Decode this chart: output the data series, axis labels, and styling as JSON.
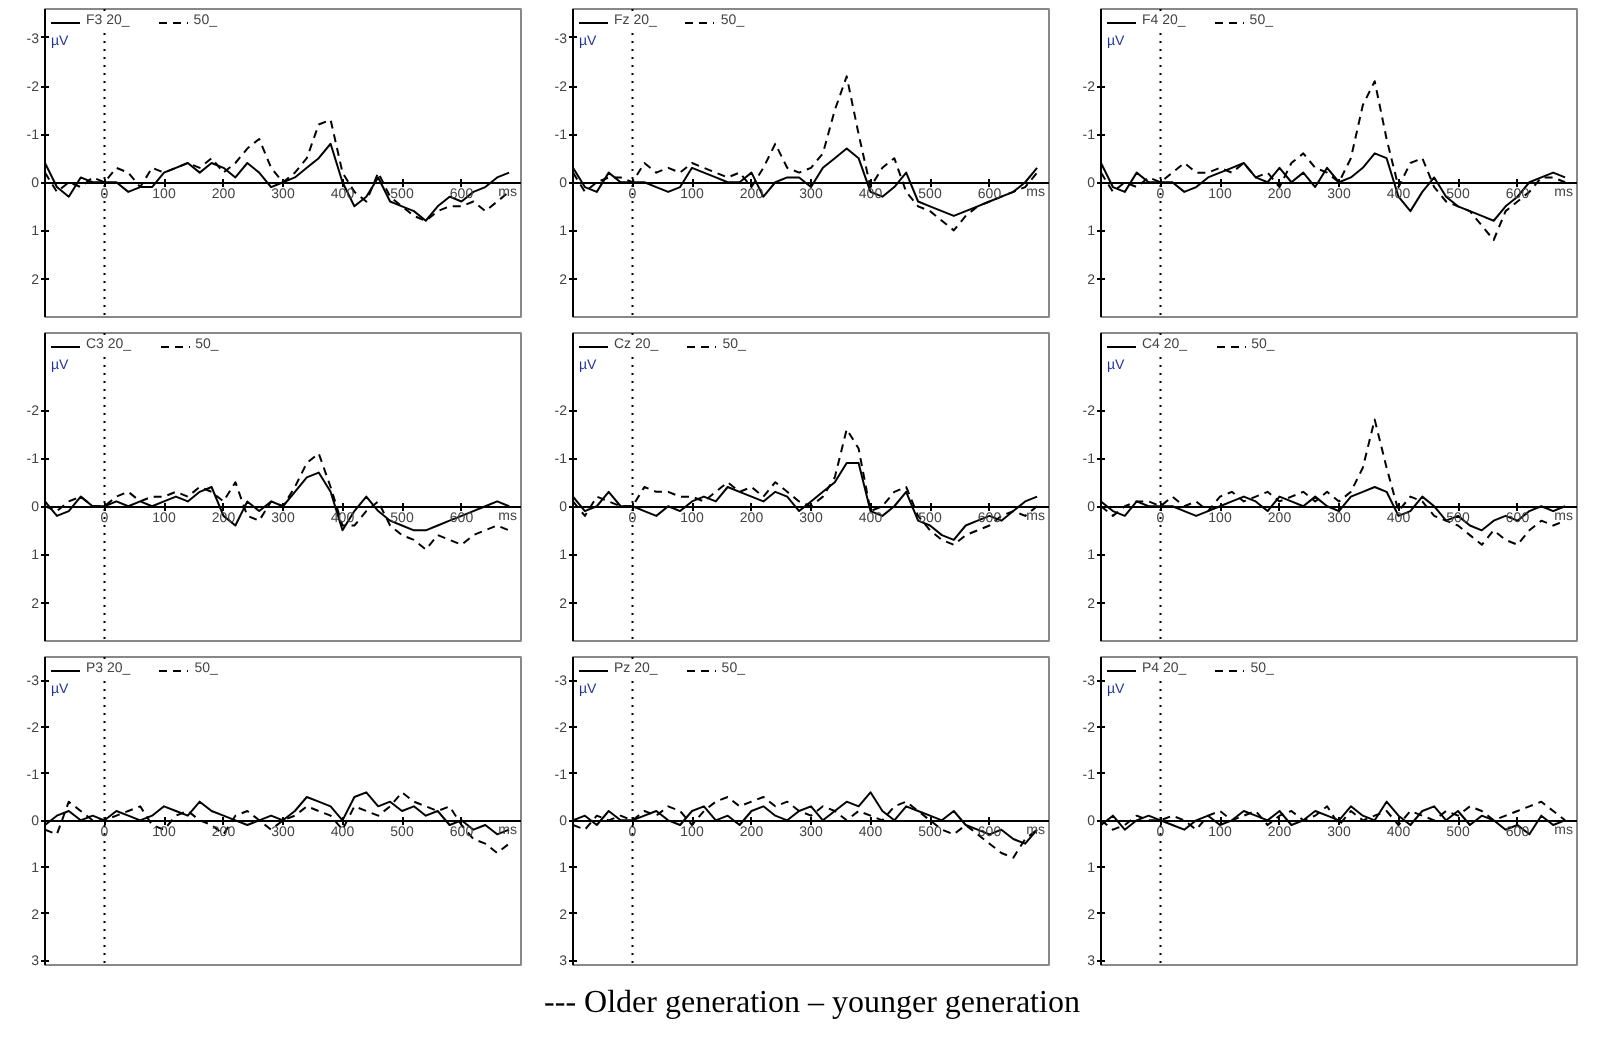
{
  "chart_data": [
    {
      "type": "line",
      "xlabel": "ms",
      "ylabel": "µV",
      "xlim": [
        -100,
        700
      ],
      "ylim": [
        2.8,
        -3.6
      ],
      "xticks": [
        0,
        100,
        200,
        300,
        400,
        500,
        600
      ],
      "yticks": [
        -3,
        -2,
        -1,
        0,
        1,
        2
      ],
      "legend": "top left",
      "ref_lines": [
        {
          "axis": "x",
          "value": 0,
          "line_style": "dotted"
        }
      ],
      "x": [
        -100,
        -80,
        -60,
        -40,
        -20,
        0,
        20,
        40,
        60,
        80,
        100,
        120,
        140,
        160,
        180,
        200,
        220,
        240,
        260,
        280,
        300,
        320,
        340,
        360,
        380,
        400,
        420,
        440,
        460,
        480,
        500,
        520,
        540,
        560,
        580,
        600,
        620,
        640,
        660,
        680
      ],
      "series": [
        {
          "name": "F3 20_",
          "color": "#000000",
          "line_style": "solid",
          "values": [
            -0.4,
            0.1,
            0.3,
            -0.1,
            0.0,
            0.0,
            0.0,
            0.2,
            0.1,
            0.1,
            -0.2,
            -0.3,
            -0.4,
            -0.2,
            -0.4,
            -0.3,
            -0.1,
            -0.4,
            -0.2,
            0.1,
            0.0,
            -0.1,
            -0.3,
            -0.5,
            -0.8,
            0.0,
            0.5,
            0.3,
            -0.1,
            0.4,
            0.5,
            0.6,
            0.8,
            0.5,
            0.3,
            0.4,
            0.2,
            0.1,
            -0.1,
            -0.2
          ]
        },
        {
          "name": "50_",
          "color": "#000000",
          "line_style": "dashed",
          "values": [
            -0.2,
            0.2,
            0.0,
            0.1,
            -0.1,
            0.0,
            -0.3,
            -0.2,
            0.1,
            -0.3,
            -0.2,
            -0.3,
            -0.4,
            -0.3,
            -0.5,
            -0.2,
            -0.4,
            -0.7,
            -0.9,
            -0.3,
            0.0,
            -0.2,
            -0.5,
            -1.2,
            -1.3,
            -0.2,
            0.2,
            0.4,
            -0.2,
            0.3,
            0.5,
            0.7,
            0.8,
            0.6,
            0.5,
            0.5,
            0.4,
            0.6,
            0.4,
            0.2
          ]
        }
      ]
    },
    {
      "type": "line",
      "xlabel": "ms",
      "ylabel": "µV",
      "xlim": [
        -100,
        700
      ],
      "ylim": [
        2.8,
        -3.6
      ],
      "xticks": [
        0,
        100,
        200,
        300,
        400,
        500,
        600
      ],
      "yticks": [
        -3,
        -2,
        -1,
        0,
        1,
        2
      ],
      "legend": "top left",
      "ref_lines": [
        {
          "axis": "x",
          "value": 0,
          "line_style": "dotted"
        }
      ],
      "x": [
        -100,
        -80,
        -60,
        -40,
        -20,
        0,
        20,
        40,
        60,
        80,
        100,
        120,
        140,
        160,
        180,
        200,
        220,
        240,
        260,
        280,
        300,
        320,
        340,
        360,
        380,
        400,
        420,
        440,
        460,
        480,
        500,
        520,
        540,
        560,
        580,
        600,
        620,
        640,
        660,
        680
      ],
      "series": [
        {
          "name": "Fz 20_",
          "color": "#000000",
          "line_style": "solid",
          "values": [
            -0.3,
            0.1,
            0.2,
            -0.2,
            0.0,
            0.0,
            0.0,
            0.1,
            0.2,
            0.1,
            -0.3,
            -0.2,
            -0.1,
            0.0,
            0.0,
            -0.2,
            0.3,
            0.0,
            -0.1,
            -0.1,
            0.1,
            -0.3,
            -0.5,
            -0.7,
            -0.5,
            0.2,
            0.3,
            0.1,
            -0.2,
            0.4,
            0.5,
            0.6,
            0.7,
            0.6,
            0.5,
            0.4,
            0.3,
            0.2,
            0.0,
            -0.3
          ]
        },
        {
          "name": "50_",
          "color": "#000000",
          "line_style": "dashed",
          "values": [
            -0.2,
            0.2,
            0.0,
            -0.1,
            -0.1,
            0.0,
            -0.4,
            -0.2,
            -0.3,
            -0.2,
            -0.4,
            -0.3,
            -0.2,
            -0.1,
            -0.2,
            0.1,
            -0.3,
            -0.8,
            -0.3,
            -0.2,
            -0.3,
            -0.6,
            -1.5,
            -2.2,
            -1.0,
            0.1,
            -0.3,
            -0.5,
            0.2,
            0.5,
            0.6,
            0.8,
            1.0,
            0.7,
            0.5,
            0.4,
            0.3,
            0.2,
            0.1,
            -0.2
          ]
        }
      ]
    },
    {
      "type": "line",
      "xlabel": "ms",
      "ylabel": "µV",
      "xlim": [
        -100,
        700
      ],
      "ylim": [
        2.8,
        -3.6
      ],
      "xticks": [
        0,
        100,
        200,
        300,
        400,
        500,
        600
      ],
      "yticks": [
        -2,
        -1,
        0,
        1,
        2
      ],
      "legend": "top left",
      "ref_lines": [
        {
          "axis": "x",
          "value": 0,
          "line_style": "dotted"
        }
      ],
      "x": [
        -100,
        -80,
        -60,
        -40,
        -20,
        0,
        20,
        40,
        60,
        80,
        100,
        120,
        140,
        160,
        180,
        200,
        220,
        240,
        260,
        280,
        300,
        320,
        340,
        360,
        380,
        400,
        420,
        440,
        460,
        480,
        500,
        520,
        540,
        560,
        580,
        600,
        620,
        640,
        660,
        680
      ],
      "series": [
        {
          "name": "F4 20_",
          "color": "#000000",
          "line_style": "solid",
          "values": [
            -0.4,
            0.1,
            0.2,
            -0.2,
            0.0,
            0.0,
            0.0,
            0.2,
            0.1,
            -0.1,
            -0.2,
            -0.3,
            -0.4,
            -0.1,
            0.0,
            -0.3,
            0.0,
            -0.2,
            0.1,
            -0.3,
            0.0,
            -0.1,
            -0.3,
            -0.6,
            -0.5,
            0.3,
            0.6,
            0.2,
            -0.1,
            0.3,
            0.5,
            0.6,
            0.7,
            0.8,
            0.5,
            0.3,
            0.0,
            -0.1,
            -0.2,
            -0.1
          ]
        },
        {
          "name": "50_",
          "color": "#000000",
          "line_style": "dashed",
          "values": [
            -0.2,
            0.2,
            0.0,
            0.1,
            -0.1,
            0.0,
            -0.2,
            -0.4,
            -0.2,
            -0.2,
            -0.3,
            -0.2,
            -0.4,
            -0.1,
            -0.2,
            0.1,
            -0.4,
            -0.6,
            -0.3,
            -0.2,
            0.0,
            -0.5,
            -1.6,
            -2.1,
            -0.9,
            0.1,
            -0.4,
            -0.5,
            0.1,
            0.4,
            0.5,
            0.6,
            0.9,
            1.2,
            0.6,
            0.4,
            0.2,
            -0.1,
            -0.1,
            0.0
          ]
        }
      ]
    },
    {
      "type": "line",
      "xlabel": "ms",
      "ylabel": "µV",
      "xlim": [
        -100,
        700
      ],
      "ylim": [
        2.8,
        -3.6
      ],
      "xticks": [
        0,
        100,
        200,
        300,
        400,
        500,
        600
      ],
      "yticks": [
        -2,
        -1,
        0,
        1,
        2
      ],
      "legend": "top left",
      "ref_lines": [
        {
          "axis": "x",
          "value": 0,
          "line_style": "dotted"
        }
      ],
      "x": [
        -100,
        -80,
        -60,
        -40,
        -20,
        0,
        20,
        40,
        60,
        80,
        100,
        120,
        140,
        160,
        180,
        200,
        220,
        240,
        260,
        280,
        300,
        320,
        340,
        360,
        380,
        400,
        420,
        440,
        460,
        480,
        500,
        520,
        540,
        560,
        580,
        600,
        620,
        640,
        660,
        680
      ],
      "series": [
        {
          "name": "C3 20_",
          "color": "#000000",
          "line_style": "solid",
          "values": [
            -0.1,
            0.2,
            0.1,
            -0.2,
            0.0,
            0.0,
            -0.1,
            0.0,
            -0.1,
            0.0,
            -0.1,
            -0.2,
            -0.1,
            -0.3,
            -0.4,
            0.2,
            0.4,
            -0.1,
            0.1,
            -0.1,
            0.0,
            -0.3,
            -0.6,
            -0.7,
            -0.3,
            0.5,
            0.1,
            -0.2,
            0.1,
            0.3,
            0.4,
            0.5,
            0.5,
            0.4,
            0.3,
            0.2,
            0.1,
            0.0,
            -0.1,
            0.0
          ]
        },
        {
          "name": "50_",
          "color": "#000000",
          "line_style": "dashed",
          "values": [
            0.0,
            0.1,
            -0.1,
            -0.2,
            0.0,
            0.0,
            -0.2,
            -0.3,
            -0.1,
            -0.2,
            -0.2,
            -0.3,
            -0.2,
            -0.4,
            -0.3,
            -0.1,
            -0.5,
            0.2,
            0.3,
            -0.1,
            0.0,
            -0.4,
            -0.9,
            -1.1,
            -0.4,
            0.4,
            0.4,
            0.1,
            -0.1,
            0.4,
            0.6,
            0.7,
            0.9,
            0.6,
            0.7,
            0.8,
            0.6,
            0.5,
            0.4,
            0.5
          ]
        }
      ]
    },
    {
      "type": "line",
      "xlabel": "ms",
      "ylabel": "µV",
      "xlim": [
        -100,
        700
      ],
      "ylim": [
        2.8,
        -3.6
      ],
      "xticks": [
        0,
        100,
        200,
        300,
        400,
        500,
        600
      ],
      "yticks": [
        -2,
        -1,
        0,
        1,
        2
      ],
      "legend": "top left",
      "ref_lines": [
        {
          "axis": "x",
          "value": 0,
          "line_style": "dotted"
        }
      ],
      "x": [
        -100,
        -80,
        -60,
        -40,
        -20,
        0,
        20,
        40,
        60,
        80,
        100,
        120,
        140,
        160,
        180,
        200,
        220,
        240,
        260,
        280,
        300,
        320,
        340,
        360,
        380,
        400,
        420,
        440,
        460,
        480,
        500,
        520,
        540,
        560,
        580,
        600,
        620,
        640,
        660,
        680
      ],
      "series": [
        {
          "name": "Cz 20_",
          "color": "#000000",
          "line_style": "solid",
          "values": [
            -0.2,
            0.1,
            0.0,
            -0.3,
            0.0,
            0.0,
            0.1,
            0.2,
            0.0,
            0.1,
            -0.1,
            -0.2,
            -0.1,
            -0.4,
            -0.3,
            -0.2,
            -0.1,
            -0.3,
            -0.2,
            0.1,
            -0.1,
            -0.3,
            -0.5,
            -0.9,
            -0.9,
            0.1,
            0.2,
            0.0,
            -0.3,
            0.3,
            0.4,
            0.6,
            0.7,
            0.4,
            0.3,
            0.2,
            0.3,
            0.1,
            -0.1,
            -0.2
          ]
        },
        {
          "name": "50_",
          "color": "#000000",
          "line_style": "dashed",
          "values": [
            -0.1,
            0.2,
            -0.2,
            -0.1,
            0.0,
            0.0,
            -0.4,
            -0.3,
            -0.3,
            -0.2,
            -0.2,
            -0.1,
            -0.3,
            -0.5,
            -0.3,
            -0.4,
            -0.2,
            -0.5,
            -0.3,
            -0.1,
            0.0,
            -0.2,
            -0.6,
            -1.6,
            -1.2,
            0.1,
            0.0,
            -0.3,
            -0.4,
            0.2,
            0.5,
            0.7,
            0.8,
            0.6,
            0.5,
            0.4,
            0.2,
            0.1,
            0.2,
            0.0
          ]
        }
      ]
    },
    {
      "type": "line",
      "xlabel": "ms",
      "ylabel": "µV",
      "xlim": [
        -100,
        700
      ],
      "ylim": [
        2.8,
        -3.6
      ],
      "xticks": [
        0,
        100,
        200,
        300,
        400,
        500,
        600
      ],
      "yticks": [
        -2,
        -1,
        0,
        1,
        2
      ],
      "legend": "top left",
      "ref_lines": [
        {
          "axis": "x",
          "value": 0,
          "line_style": "dotted"
        }
      ],
      "x": [
        -100,
        -80,
        -60,
        -40,
        -20,
        0,
        20,
        40,
        60,
        80,
        100,
        120,
        140,
        160,
        180,
        200,
        220,
        240,
        260,
        280,
        300,
        320,
        340,
        360,
        380,
        400,
        420,
        440,
        460,
        480,
        500,
        520,
        540,
        560,
        580,
        600,
        620,
        640,
        660,
        680
      ],
      "series": [
        {
          "name": "C4 20_",
          "color": "#000000",
          "line_style": "solid",
          "values": [
            -0.1,
            0.1,
            0.2,
            -0.1,
            0.0,
            0.0,
            0.0,
            0.1,
            0.2,
            0.1,
            0.0,
            -0.1,
            -0.2,
            -0.1,
            0.1,
            -0.2,
            -0.1,
            0.0,
            -0.2,
            0.0,
            0.1,
            -0.2,
            -0.3,
            -0.4,
            -0.3,
            0.2,
            0.1,
            -0.2,
            0.0,
            0.3,
            0.2,
            0.4,
            0.5,
            0.3,
            0.2,
            0.3,
            0.1,
            0.0,
            0.1,
            0.0
          ]
        },
        {
          "name": "50_",
          "color": "#000000",
          "line_style": "dashed",
          "values": [
            0.0,
            0.2,
            0.0,
            -0.1,
            -0.1,
            0.0,
            -0.2,
            0.0,
            -0.1,
            0.1,
            -0.2,
            -0.3,
            -0.1,
            -0.2,
            -0.3,
            -0.1,
            -0.2,
            -0.3,
            -0.1,
            -0.3,
            -0.1,
            -0.3,
            -0.8,
            -1.8,
            -0.8,
            0.1,
            -0.2,
            -0.1,
            0.2,
            0.3,
            0.4,
            0.6,
            0.8,
            0.5,
            0.7,
            0.8,
            0.5,
            0.3,
            0.4,
            0.3
          ]
        }
      ]
    },
    {
      "type": "line",
      "xlabel": "ms",
      "ylabel": "µV",
      "xlim": [
        -100,
        700
      ],
      "ylim": [
        3.1,
        -3.5
      ],
      "xticks": [
        0,
        100,
        200,
        300,
        400,
        500,
        600
      ],
      "yticks": [
        -3,
        -2,
        -1,
        0,
        1,
        2,
        3
      ],
      "legend": "top left",
      "ref_lines": [
        {
          "axis": "x",
          "value": 0,
          "line_style": "dotted"
        }
      ],
      "x": [
        -100,
        -80,
        -60,
        -40,
        -20,
        0,
        20,
        40,
        60,
        80,
        100,
        120,
        140,
        160,
        180,
        200,
        220,
        240,
        260,
        280,
        300,
        320,
        340,
        360,
        380,
        400,
        420,
        440,
        460,
        480,
        500,
        520,
        540,
        560,
        580,
        600,
        620,
        640,
        660,
        680
      ],
      "series": [
        {
          "name": "P3 20_",
          "color": "#000000",
          "line_style": "solid",
          "values": [
            0.1,
            -0.1,
            -0.2,
            0.0,
            -0.1,
            0.0,
            -0.2,
            -0.1,
            0.0,
            -0.1,
            -0.3,
            -0.2,
            -0.1,
            -0.4,
            -0.2,
            -0.1,
            0.0,
            0.1,
            0.0,
            -0.1,
            0.0,
            -0.2,
            -0.5,
            -0.4,
            -0.3,
            0.0,
            -0.5,
            -0.6,
            -0.3,
            -0.4,
            -0.2,
            -0.3,
            -0.1,
            -0.2,
            0.1,
            0.0,
            0.2,
            0.1,
            0.3,
            0.2
          ]
        },
        {
          "name": "50_",
          "color": "#000000",
          "line_style": "dashed",
          "values": [
            0.2,
            0.3,
            -0.4,
            -0.2,
            0.0,
            0.0,
            -0.1,
            -0.2,
            -0.3,
            0.1,
            0.2,
            -0.1,
            -0.2,
            0.0,
            0.1,
            0.3,
            -0.1,
            -0.2,
            0.0,
            0.2,
            0.0,
            -0.1,
            -0.3,
            -0.2,
            -0.1,
            0.2,
            -0.3,
            -0.2,
            -0.1,
            -0.3,
            -0.6,
            -0.4,
            -0.3,
            -0.2,
            -0.3,
            0.1,
            0.4,
            0.5,
            0.7,
            0.5
          ]
        }
      ]
    },
    {
      "type": "line",
      "xlabel": "ms",
      "ylabel": "µV",
      "xlim": [
        -100,
        700
      ],
      "ylim": [
        3.1,
        -3.5
      ],
      "xticks": [
        0,
        100,
        200,
        300,
        400,
        500,
        600
      ],
      "yticks": [
        -3,
        -2,
        -1,
        0,
        1,
        2,
        3
      ],
      "legend": "top left",
      "ref_lines": [
        {
          "axis": "x",
          "value": 0,
          "line_style": "dotted"
        }
      ],
      "x": [
        -100,
        -80,
        -60,
        -40,
        -20,
        0,
        20,
        40,
        60,
        80,
        100,
        120,
        140,
        160,
        180,
        200,
        220,
        240,
        260,
        280,
        300,
        320,
        340,
        360,
        380,
        400,
        420,
        440,
        460,
        480,
        500,
        520,
        540,
        560,
        580,
        600,
        620,
        640,
        660,
        680
      ],
      "series": [
        {
          "name": "Pz 20_",
          "color": "#000000",
          "line_style": "solid",
          "values": [
            0.0,
            -0.1,
            0.1,
            -0.2,
            0.0,
            0.0,
            -0.1,
            -0.2,
            0.0,
            0.1,
            -0.2,
            -0.3,
            0.0,
            -0.1,
            0.1,
            -0.2,
            -0.3,
            -0.1,
            0.0,
            -0.2,
            -0.3,
            0.0,
            -0.2,
            -0.4,
            -0.3,
            -0.6,
            -0.2,
            0.0,
            -0.3,
            -0.2,
            -0.1,
            0.0,
            -0.2,
            0.1,
            0.2,
            0.3,
            0.2,
            0.4,
            0.5,
            0.2
          ]
        },
        {
          "name": "50_",
          "color": "#000000",
          "line_style": "dashed",
          "values": [
            0.1,
            0.2,
            -0.1,
            0.0,
            -0.1,
            0.0,
            -0.2,
            -0.1,
            -0.3,
            -0.2,
            0.1,
            -0.2,
            -0.4,
            -0.5,
            -0.3,
            -0.4,
            -0.5,
            -0.3,
            -0.4,
            -0.2,
            -0.1,
            -0.3,
            -0.2,
            0.0,
            -0.2,
            -0.1,
            0.0,
            -0.3,
            -0.4,
            -0.2,
            0.0,
            0.2,
            0.3,
            0.1,
            0.3,
            0.5,
            0.7,
            0.8,
            0.4,
            0.2
          ]
        }
      ]
    },
    {
      "type": "line",
      "xlabel": "ms",
      "ylabel": "µV",
      "xlim": [
        -100,
        700
      ],
      "ylim": [
        3.1,
        -3.5
      ],
      "xticks": [
        0,
        100,
        200,
        300,
        400,
        500,
        600
      ],
      "yticks": [
        -3,
        -2,
        -1,
        0,
        1,
        2,
        3
      ],
      "legend": "top left",
      "ref_lines": [
        {
          "axis": "x",
          "value": 0,
          "line_style": "dotted"
        }
      ],
      "annotations": [
        "--- Older generation – younger generation"
      ],
      "x": [
        -100,
        -80,
        -60,
        -40,
        -20,
        0,
        20,
        40,
        60,
        80,
        100,
        120,
        140,
        160,
        180,
        200,
        220,
        240,
        260,
        280,
        300,
        320,
        340,
        360,
        380,
        400,
        420,
        440,
        460,
        480,
        500,
        520,
        540,
        560,
        580,
        600,
        620,
        640,
        660,
        680
      ],
      "series": [
        {
          "name": "P4 20_",
          "color": "#000000",
          "line_style": "solid",
          "values": [
            0.1,
            -0.1,
            0.2,
            0.0,
            -0.1,
            0.0,
            0.1,
            0.2,
            0.0,
            -0.1,
            0.1,
            0.0,
            -0.2,
            -0.1,
            0.0,
            -0.2,
            0.1,
            0.0,
            -0.2,
            -0.1,
            0.0,
            -0.3,
            -0.1,
            0.0,
            -0.4,
            -0.1,
            0.1,
            -0.2,
            -0.3,
            0.0,
            -0.2,
            0.1,
            -0.1,
            0.0,
            0.2,
            0.1,
            0.3,
            -0.1,
            0.1,
            0.0
          ]
        },
        {
          "name": "50_",
          "color": "#000000",
          "line_style": "dashed",
          "values": [
            0.0,
            0.2,
            0.1,
            -0.1,
            0.0,
            0.0,
            -0.1,
            0.0,
            0.2,
            -0.1,
            -0.2,
            0.0,
            -0.1,
            -0.2,
            0.1,
            -0.1,
            -0.2,
            0.0,
            -0.1,
            -0.3,
            0.1,
            -0.2,
            0.0,
            -0.1,
            -0.2,
            0.1,
            -0.2,
            -0.1,
            0.0,
            -0.2,
            -0.1,
            -0.3,
            -0.2,
            0.0,
            -0.1,
            -0.2,
            -0.3,
            -0.4,
            -0.2,
            0.0
          ]
        }
      ]
    }
  ]
}
